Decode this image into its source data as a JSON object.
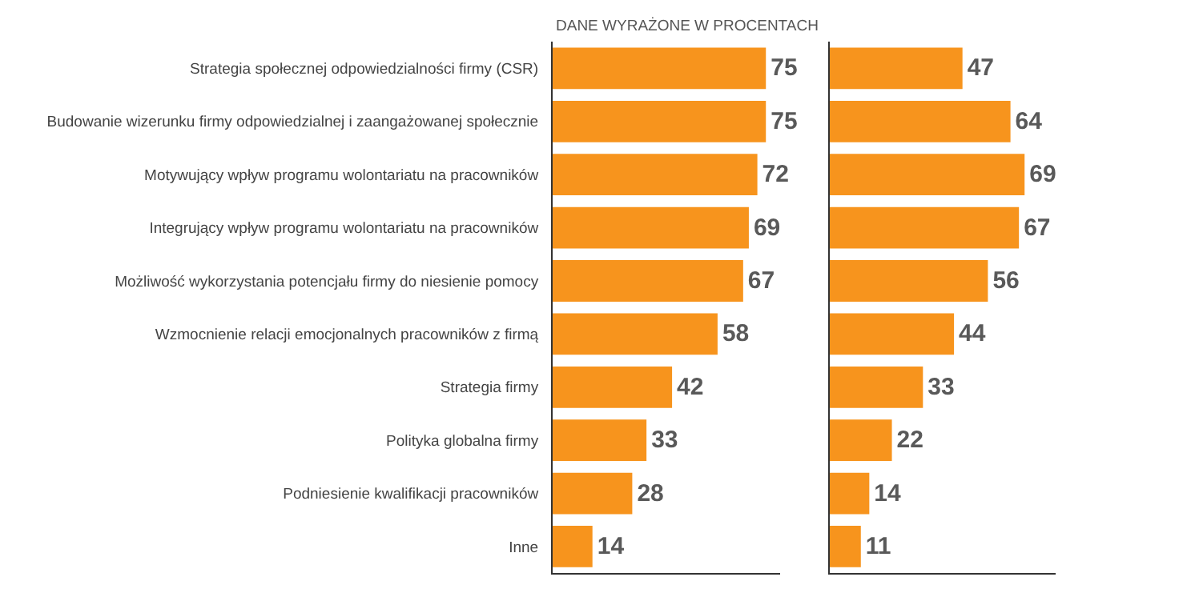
{
  "chart_data": [
    {
      "type": "bar",
      "orientation": "horizontal",
      "title": "DANE WYRAŻONE W PROCENTACH",
      "categories": [
        "Strategia społecznej odpowiedzialności firmy (CSR)",
        "Budowanie wizerunku firmy odpowiedzialnej i zaangażowanej społecznie",
        "Motywujący wpływ programu wolontariatu na pracowników",
        "Integrujący wpływ programu wolontariatu na pracowników",
        "Możliwość wykorzystania potencjału firmy do niesienie pomocy",
        "Wzmocnienie relacji emocjonalnych pracowników z firmą",
        "Strategia firmy",
        "Polityka globalna firmy",
        "Podniesienie kwalifikacji pracowników",
        "Inne"
      ],
      "values": [
        75,
        75,
        72,
        69,
        67,
        58,
        42,
        33,
        28,
        14
      ],
      "color": "#f7941d",
      "data_labels": true,
      "xlim": [
        0,
        80
      ],
      "tick_labels": "y"
    },
    {
      "type": "bar",
      "orientation": "horizontal",
      "categories": [
        null,
        null,
        null,
        null,
        null,
        null,
        null,
        null,
        null,
        null
      ],
      "values": [
        47,
        64,
        69,
        67,
        56,
        44,
        33,
        22,
        14,
        11
      ],
      "color": "#f7941d",
      "data_labels": true,
      "xlim": [
        0,
        80
      ],
      "tick_labels": false
    }
  ]
}
